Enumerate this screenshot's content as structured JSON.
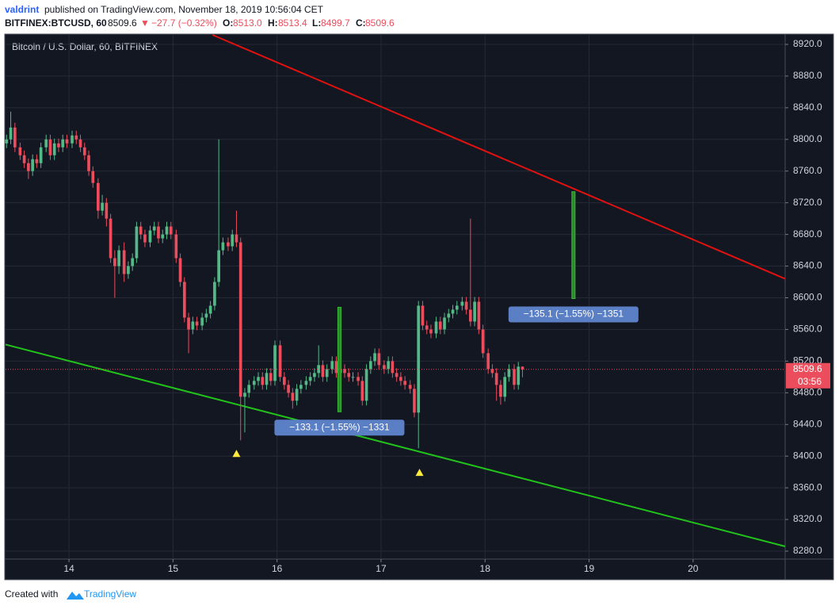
{
  "header": {
    "author": "valdrint",
    "published": "published on TradingView.com, November 18, 2019 10:56:04 CET",
    "symbol": "BITFINEX:BTCUSD, 60",
    "last": "8509.6",
    "arrow": "▼",
    "change": "−27.7 (−0.32%)",
    "o": "O:",
    "o_val": "8513.0",
    "h": "H:",
    "h_val": "8513.4",
    "l": "L:",
    "l_val": "8499.7",
    "c": "C:",
    "c_val": "8509.6"
  },
  "footer": {
    "created": "Created with",
    "brand": "TradingView"
  },
  "chart_data": {
    "type": "candlestick",
    "title": "Bitcoin / U.S. Dollar, 60, BITFINEX",
    "up_color": "#53b987",
    "down_color": "#eb4d5c",
    "grid": true,
    "xlim": [
      13.39,
      20.885
    ],
    "xticks": [
      14,
      15,
      16,
      17,
      18,
      19,
      20
    ],
    "ylim": [
      8270,
      8932
    ],
    "yticks": [
      {
        "value": 8280,
        "label": "8280.0"
      },
      {
        "value": 8320,
        "label": "8320.0"
      },
      {
        "value": 8360,
        "label": "8360.0"
      },
      {
        "value": 8400,
        "label": "8400.0"
      },
      {
        "value": 8440,
        "label": "8440.0"
      },
      {
        "value": 8480,
        "label": "8480.0"
      },
      {
        "value": 8520,
        "label": "8520.0"
      },
      {
        "value": 8560,
        "label": "8560.0"
      },
      {
        "value": 8600,
        "label": "8600.0"
      },
      {
        "value": 8640,
        "label": "8640.0"
      },
      {
        "value": 8680,
        "label": "8680.0"
      },
      {
        "value": 8720,
        "label": "8720.0"
      },
      {
        "value": 8760,
        "label": "8760.0"
      },
      {
        "value": 8800,
        "label": "8800.0"
      },
      {
        "value": 8840,
        "label": "8840.0"
      },
      {
        "value": 8880,
        "label": "8880.0"
      },
      {
        "value": 8920,
        "label": "8920.0"
      }
    ],
    "x": [
      13.4,
      13.44,
      13.48,
      13.53,
      13.57,
      13.61,
      13.65,
      13.69,
      13.73,
      13.78,
      13.82,
      13.86,
      13.9,
      13.94,
      13.98,
      14.03,
      14.07,
      14.11,
      14.15,
      14.19,
      14.23,
      14.28,
      14.32,
      14.36,
      14.4,
      14.44,
      14.48,
      14.53,
      14.57,
      14.61,
      14.65,
      14.69,
      14.73,
      14.78,
      14.82,
      14.86,
      14.9,
      14.94,
      14.98,
      15.03,
      15.07,
      15.11,
      15.15,
      15.19,
      15.23,
      15.28,
      15.32,
      15.36,
      15.4,
      15.44,
      15.48,
      15.53,
      15.57,
      15.61,
      15.65,
      15.69,
      15.73,
      15.78,
      15.82,
      15.86,
      15.9,
      15.94,
      15.98,
      16.03,
      16.07,
      16.11,
      16.15,
      16.19,
      16.23,
      16.28,
      16.32,
      16.36,
      16.4,
      16.44,
      16.48,
      16.53,
      16.57,
      16.61,
      16.65,
      16.69,
      16.73,
      16.78,
      16.82,
      16.86,
      16.9,
      16.94,
      16.98,
      17.03,
      17.07,
      17.11,
      17.15,
      17.19,
      17.23,
      17.28,
      17.32,
      17.36,
      17.4,
      17.44,
      17.48,
      17.53,
      17.57,
      17.61,
      17.65,
      17.69,
      17.73,
      17.78,
      17.82,
      17.86,
      17.9,
      17.94,
      17.98,
      18.03,
      18.07,
      18.11,
      18.15,
      18.19,
      18.23,
      18.28,
      18.32,
      18.36
    ],
    "open": [
      8795,
      8800,
      8815,
      8790,
      8780,
      8770,
      8760,
      8775,
      8770,
      8790,
      8800,
      8780,
      8795,
      8790,
      8800,
      8795,
      8805,
      8800,
      8790,
      8780,
      8760,
      8745,
      8710,
      8720,
      8700,
      8650,
      8640,
      8660,
      8630,
      8640,
      8650,
      8690,
      8680,
      8670,
      8685,
      8690,
      8675,
      8680,
      8690,
      8680,
      8650,
      8620,
      8575,
      8560,
      8570,
      8565,
      8575,
      8580,
      8590,
      8620,
      8660,
      8670,
      8665,
      8680,
      8670,
      8475,
      8480,
      8490,
      8495,
      8500,
      8490,
      8505,
      8495,
      8540,
      8500,
      8490,
      8480,
      8470,
      8485,
      8490,
      8495,
      8500,
      8505,
      8515,
      8500,
      8510,
      8520,
      8505,
      8510,
      8505,
      8500,
      8500,
      8495,
      8470,
      8510,
      8520,
      8530,
      8515,
      8510,
      8520,
      8505,
      8500,
      8495,
      8490,
      8485,
      8455,
      8590,
      8565,
      8560,
      8555,
      8570,
      8560,
      8575,
      8580,
      8585,
      8590,
      8595,
      8585,
      8570,
      8595,
      8560,
      8530,
      8510,
      8505,
      8490,
      8475,
      8500,
      8510,
      8490,
      8513
    ],
    "high": [
      8806,
      8835,
      8821,
      8796,
      8786,
      8776,
      8781,
      8781,
      8796,
      8806,
      8806,
      8801,
      8801,
      8806,
      8806,
      8811,
      8811,
      8806,
      8796,
      8786,
      8766,
      8751,
      8730,
      8726,
      8706,
      8660,
      8666,
      8670,
      8646,
      8656,
      8696,
      8696,
      8686,
      8691,
      8696,
      8696,
      8686,
      8696,
      8696,
      8686,
      8656,
      8626,
      8581,
      8576,
      8576,
      8581,
      8586,
      8596,
      8626,
      8800,
      8676,
      8676,
      8686,
      8710,
      8676,
      8486,
      8496,
      8501,
      8506,
      8506,
      8511,
      8511,
      8546,
      8546,
      8506,
      8496,
      8486,
      8491,
      8496,
      8501,
      8506,
      8511,
      8540,
      8521,
      8516,
      8526,
      8526,
      8516,
      8516,
      8511,
      8506,
      8506,
      8501,
      8516,
      8526,
      8536,
      8536,
      8521,
      8526,
      8526,
      8511,
      8506,
      8501,
      8496,
      8491,
      8596,
      8596,
      8571,
      8566,
      8576,
      8576,
      8581,
      8586,
      8591,
      8596,
      8601,
      8601,
      8700,
      8601,
      8601,
      8566,
      8536,
      8516,
      8511,
      8496,
      8506,
      8516,
      8516,
      8519,
      8513.4
    ],
    "low": [
      8789,
      8794,
      8784,
      8774,
      8764,
      8750,
      8754,
      8764,
      8764,
      8784,
      8774,
      8774,
      8784,
      8784,
      8789,
      8789,
      8794,
      8784,
      8774,
      8754,
      8739,
      8700,
      8704,
      8690,
      8644,
      8600,
      8630,
      8620,
      8624,
      8634,
      8644,
      8674,
      8664,
      8664,
      8679,
      8669,
      8669,
      8674,
      8674,
      8644,
      8614,
      8569,
      8530,
      8554,
      8559,
      8559,
      8569,
      8574,
      8584,
      8614,
      8654,
      8659,
      8659,
      8664,
      8420,
      8430,
      8474,
      8484,
      8489,
      8484,
      8484,
      8489,
      8489,
      8494,
      8484,
      8474,
      8460,
      8464,
      8479,
      8484,
      8489,
      8494,
      8499,
      8494,
      8494,
      8504,
      8499,
      8499,
      8499,
      8494,
      8494,
      8489,
      8464,
      8464,
      8504,
      8514,
      8509,
      8504,
      8504,
      8499,
      8494,
      8489,
      8484,
      8479,
      8449,
      8410,
      8559,
      8554,
      8549,
      8549,
      8554,
      8554,
      8569,
      8574,
      8579,
      8584,
      8579,
      8564,
      8564,
      8554,
      8524,
      8504,
      8499,
      8470,
      8465,
      8469,
      8494,
      8484,
      8484,
      8499.7
    ],
    "close": [
      8800,
      8815,
      8790,
      8780,
      8770,
      8760,
      8775,
      8770,
      8790,
      8800,
      8780,
      8795,
      8790,
      8800,
      8795,
      8805,
      8800,
      8790,
      8780,
      8760,
      8745,
      8710,
      8720,
      8700,
      8650,
      8640,
      8660,
      8630,
      8640,
      8650,
      8690,
      8680,
      8670,
      8685,
      8690,
      8675,
      8680,
      8690,
      8680,
      8650,
      8620,
      8575,
      8560,
      8570,
      8565,
      8575,
      8580,
      8590,
      8620,
      8660,
      8670,
      8665,
      8680,
      8670,
      8475,
      8480,
      8490,
      8495,
      8500,
      8490,
      8505,
      8495,
      8540,
      8500,
      8490,
      8480,
      8470,
      8485,
      8490,
      8495,
      8500,
      8505,
      8515,
      8500,
      8510,
      8520,
      8505,
      8510,
      8505,
      8500,
      8500,
      8495,
      8470,
      8510,
      8520,
      8530,
      8515,
      8510,
      8520,
      8505,
      8500,
      8495,
      8490,
      8485,
      8455,
      8590,
      8565,
      8560,
      8555,
      8570,
      8560,
      8575,
      8580,
      8585,
      8590,
      8595,
      8585,
      8570,
      8595,
      8560,
      8530,
      8510,
      8505,
      8490,
      8475,
      8500,
      8510,
      8490,
      8513,
      8509.6
    ],
    "countdown": "03:56",
    "trendlines": [
      {
        "color": "#e0120f",
        "x": [
          15.38,
          20.885
        ],
        "y": [
          8932,
          8624
        ]
      },
      {
        "color": "#21c21a",
        "x": [
          13.39,
          20.885
        ],
        "y": [
          8541,
          8286
        ]
      }
    ],
    "measures": [
      {
        "x": 16.6,
        "y": [
          8456,
          8588
        ],
        "label": "−133.1 (−1.55%) −1331"
      },
      {
        "x": 18.85,
        "y": [
          8599,
          8734
        ],
        "label": "−135.1 (−1.55%) −1351"
      }
    ],
    "markers": [
      {
        "x": 15.61,
        "y": 8403
      },
      {
        "x": 17.37,
        "y": 8379
      }
    ]
  }
}
